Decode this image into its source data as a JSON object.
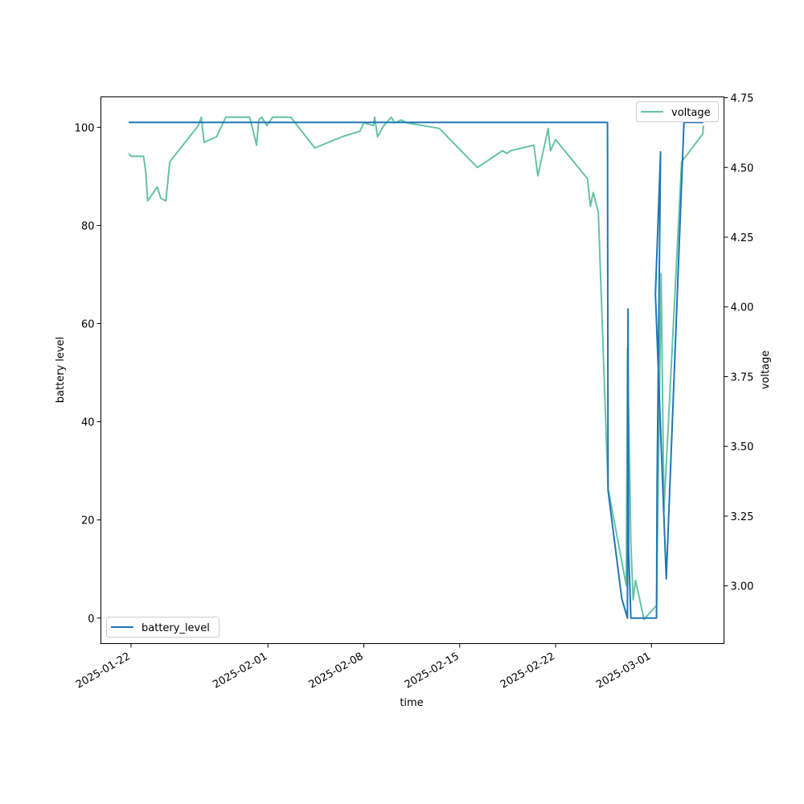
{
  "chart_data": {
    "type": "line",
    "title": "",
    "xlabel": "time",
    "ylabel_left": "battery level",
    "ylabel_right": "voltage",
    "x_ticks": [
      "2025-01-22",
      "2025-02-01",
      "2025-02-08",
      "2025-02-15",
      "2025-02-22",
      "2025-03-01"
    ],
    "ylim_left": [
      -5.2,
      106.2
    ],
    "ylim_right": [
      2.793,
      4.753
    ],
    "y_ticks_left": [
      0,
      20,
      40,
      60,
      80,
      100
    ],
    "y_ticks_right": [
      "3.00",
      "3.25",
      "3.50",
      "3.75",
      "4.00",
      "4.25",
      "4.50",
      "4.75"
    ],
    "grid": false,
    "series": [
      {
        "name": "battery_level",
        "axis": "left",
        "color": "#1f77b4",
        "legend_position": "lower-left",
        "points": [
          [
            "2025-01-21T20:00",
            101
          ],
          [
            "2025-02-25T19:00",
            101
          ],
          [
            "2025-02-25T20:00",
            26
          ],
          [
            "2025-02-26T20:00",
            4
          ],
          [
            "2025-02-27T06:00",
            0
          ],
          [
            "2025-02-27T07:00",
            63
          ],
          [
            "2025-02-27T08:00",
            14
          ],
          [
            "2025-02-27T12:00",
            0
          ],
          [
            "2025-02-28T14:00",
            0
          ],
          [
            "2025-02-29T09:00",
            0
          ],
          [
            "2025-02-29T10:00",
            28
          ],
          [
            "2025-02-29T16:00",
            95
          ],
          [
            "2025-03-01T07:00",
            66
          ],
          [
            "2025-03-02T02:00",
            8
          ],
          [
            "2025-03-03T09:00",
            101
          ],
          [
            "2025-03-04T19:00",
            101
          ]
        ]
      },
      {
        "name": "voltage",
        "axis": "right",
        "color": "#66c2a5",
        "legend_position": "upper-right",
        "points": [
          [
            "2025-01-21T20:00",
            4.55
          ],
          [
            "2025-01-22T00:00",
            4.54
          ],
          [
            "2025-01-22T22:00",
            4.54
          ],
          [
            "2025-01-23T02:00",
            4.48
          ],
          [
            "2025-01-23T05:00",
            4.38
          ],
          [
            "2025-01-23T22:00",
            4.43
          ],
          [
            "2025-01-24T04:00",
            4.39
          ],
          [
            "2025-01-24T13:00",
            4.38
          ],
          [
            "2025-01-24T20:00",
            4.52
          ],
          [
            "2025-01-26T22:00",
            4.65
          ],
          [
            "2025-01-27T03:00",
            4.68
          ],
          [
            "2025-01-27T08:00",
            4.59
          ],
          [
            "2025-01-28T06:00",
            4.61
          ],
          [
            "2025-01-28T22:00",
            4.68
          ],
          [
            "2025-01-30T16:00",
            4.68
          ],
          [
            "2025-01-30T21:00",
            4.64
          ],
          [
            "2025-01-31T04:00",
            4.58
          ],
          [
            "2025-01-31T08:00",
            4.67
          ],
          [
            "2025-01-31T13:00",
            4.68
          ],
          [
            "2025-01-31T22:00",
            4.65
          ],
          [
            "2025-02-01T08:00",
            4.68
          ],
          [
            "2025-02-02T16:00",
            4.68
          ],
          [
            "2025-02-04T10:00",
            4.57
          ],
          [
            "2025-02-06T10:00",
            4.61
          ],
          [
            "2025-02-07T17:00",
            4.63
          ],
          [
            "2025-02-08T00:00",
            4.66
          ],
          [
            "2025-02-08T17:00",
            4.65
          ],
          [
            "2025-02-08T19:00",
            4.68
          ],
          [
            "2025-02-09T00:00",
            4.61
          ],
          [
            "2025-02-09T11:00",
            4.65
          ],
          [
            "2025-02-10T00:00",
            4.68
          ],
          [
            "2025-02-10T06:00",
            4.66
          ],
          [
            "2025-02-10T17:00",
            4.67
          ],
          [
            "2025-02-11T04:00",
            4.66
          ],
          [
            "2025-02-13T12:00",
            4.64
          ],
          [
            "2025-02-13T17:00",
            4.63
          ],
          [
            "2025-02-16T07:00",
            4.5
          ],
          [
            "2025-02-18T03:00",
            4.56
          ],
          [
            "2025-02-18T11:00",
            4.55
          ],
          [
            "2025-02-18T17:00",
            4.56
          ],
          [
            "2025-02-20T10:00",
            4.58
          ],
          [
            "2025-02-20T17:00",
            4.47
          ],
          [
            "2025-02-21T11:00",
            4.64
          ],
          [
            "2025-02-21T15:00",
            4.56
          ],
          [
            "2025-02-22T00:00",
            4.6
          ],
          [
            "2025-02-24T08:00",
            4.46
          ],
          [
            "2025-02-24T13:00",
            4.36
          ],
          [
            "2025-02-24T18:00",
            4.41
          ],
          [
            "2025-02-25T03:00",
            4.34
          ],
          [
            "2025-02-25T20:00",
            3.35
          ],
          [
            "2025-02-27T04:00",
            3.0
          ],
          [
            "2025-02-27T06:00",
            3.85
          ],
          [
            "2025-02-27T12:00",
            3.15
          ],
          [
            "2025-02-27T16:00",
            2.95
          ],
          [
            "2025-02-27T20:00",
            3.02
          ],
          [
            "2025-02-28T11:00",
            2.88
          ],
          [
            "2025-02-29T09:00",
            2.93
          ],
          [
            "2025-02-29T17:00",
            4.12
          ],
          [
            "2025-03-01T22:00",
            3.27
          ],
          [
            "2025-03-03T05:00",
            4.52
          ],
          [
            "2025-03-04T18:00",
            4.62
          ],
          [
            "2025-03-04T19:00",
            4.65
          ]
        ]
      }
    ]
  }
}
